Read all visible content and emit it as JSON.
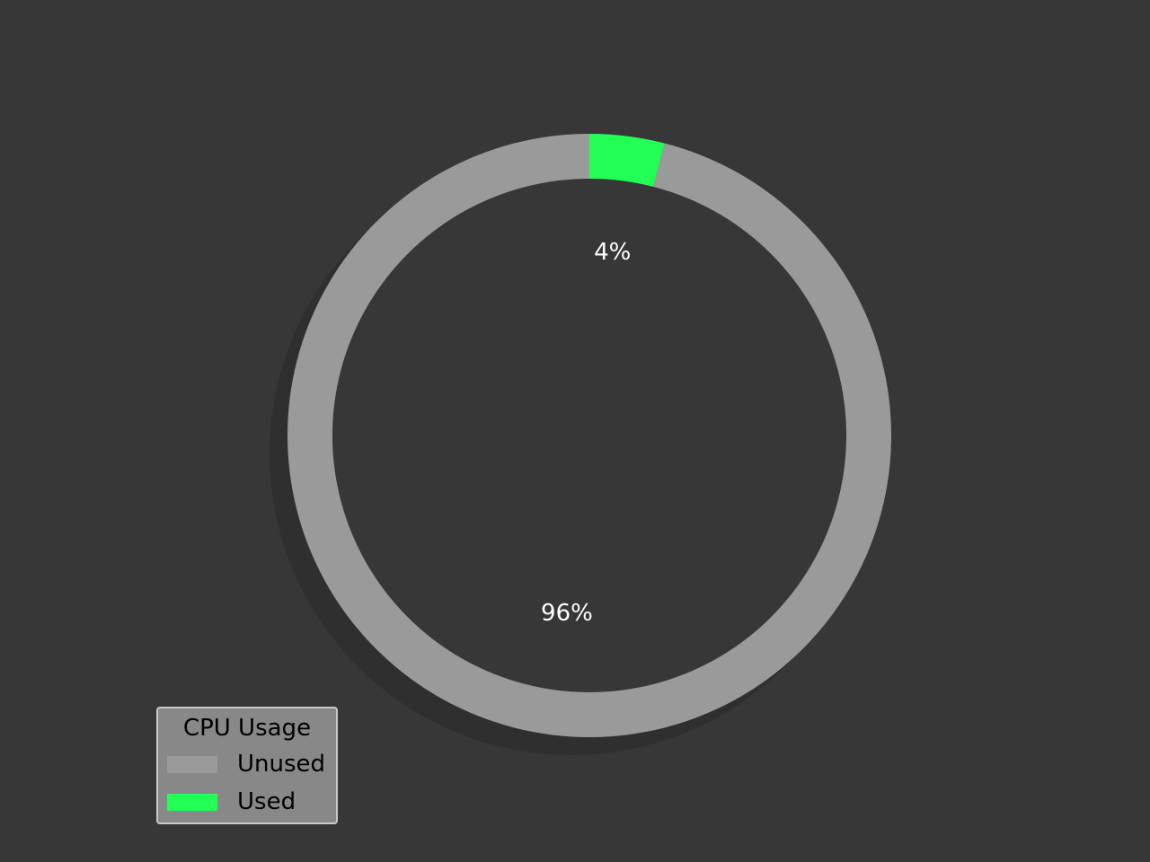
{
  "chart_data": {
    "type": "pie",
    "variant": "donut",
    "series": [
      {
        "name": "Unused",
        "value": 96,
        "label": "96%",
        "color": "#9a9a9a"
      },
      {
        "name": "Used",
        "value": 4,
        "label": "4%",
        "color": "#22ff55"
      }
    ],
    "legend": {
      "title": "CPU Usage",
      "placement": "lower-left"
    },
    "title": "",
    "background": "#363736",
    "shadow": true
  }
}
